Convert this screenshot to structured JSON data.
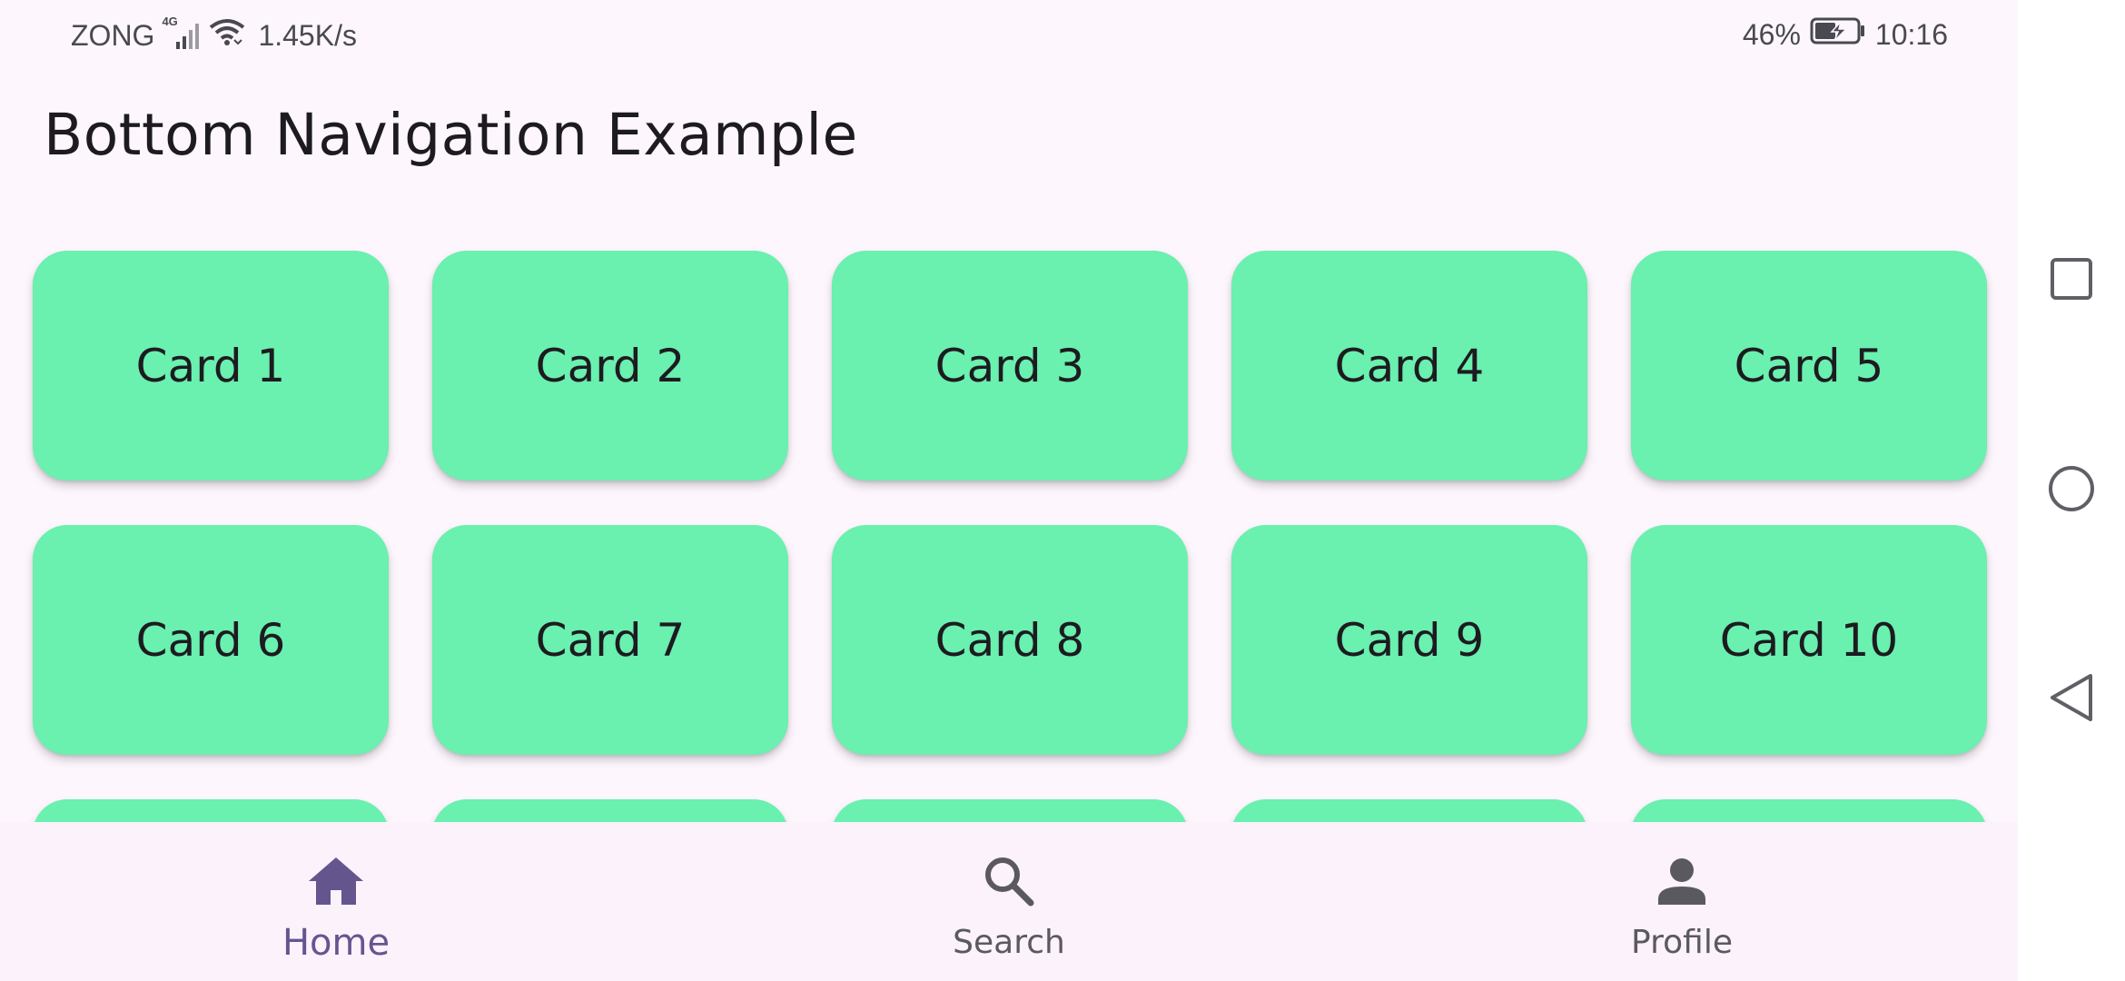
{
  "status_bar": {
    "carrier": "ZONG",
    "network_type": "4G",
    "speed": "1.45K/s",
    "battery": "46%",
    "time": "10:16"
  },
  "app_bar": {
    "title": "Bottom Navigation Example"
  },
  "cards": [
    {
      "label": "Card 1"
    },
    {
      "label": "Card 2"
    },
    {
      "label": "Card 3"
    },
    {
      "label": "Card 4"
    },
    {
      "label": "Card 5"
    },
    {
      "label": "Card 6"
    },
    {
      "label": "Card 7"
    },
    {
      "label": "Card 8"
    },
    {
      "label": "Card 9"
    },
    {
      "label": "Card 10"
    },
    {
      "label": ""
    },
    {
      "label": ""
    },
    {
      "label": ""
    },
    {
      "label": ""
    },
    {
      "label": ""
    }
  ],
  "bottom_nav": {
    "items": [
      {
        "label": "Home",
        "icon": "home-icon",
        "active": true
      },
      {
        "label": "Search",
        "icon": "search-icon",
        "active": false
      },
      {
        "label": "Profile",
        "icon": "person-icon",
        "active": false
      }
    ]
  },
  "colors": {
    "background": "#fdf7fd",
    "card": "#6af0af",
    "active_nav": "#65558f",
    "inactive_nav": "#5b5960"
  }
}
